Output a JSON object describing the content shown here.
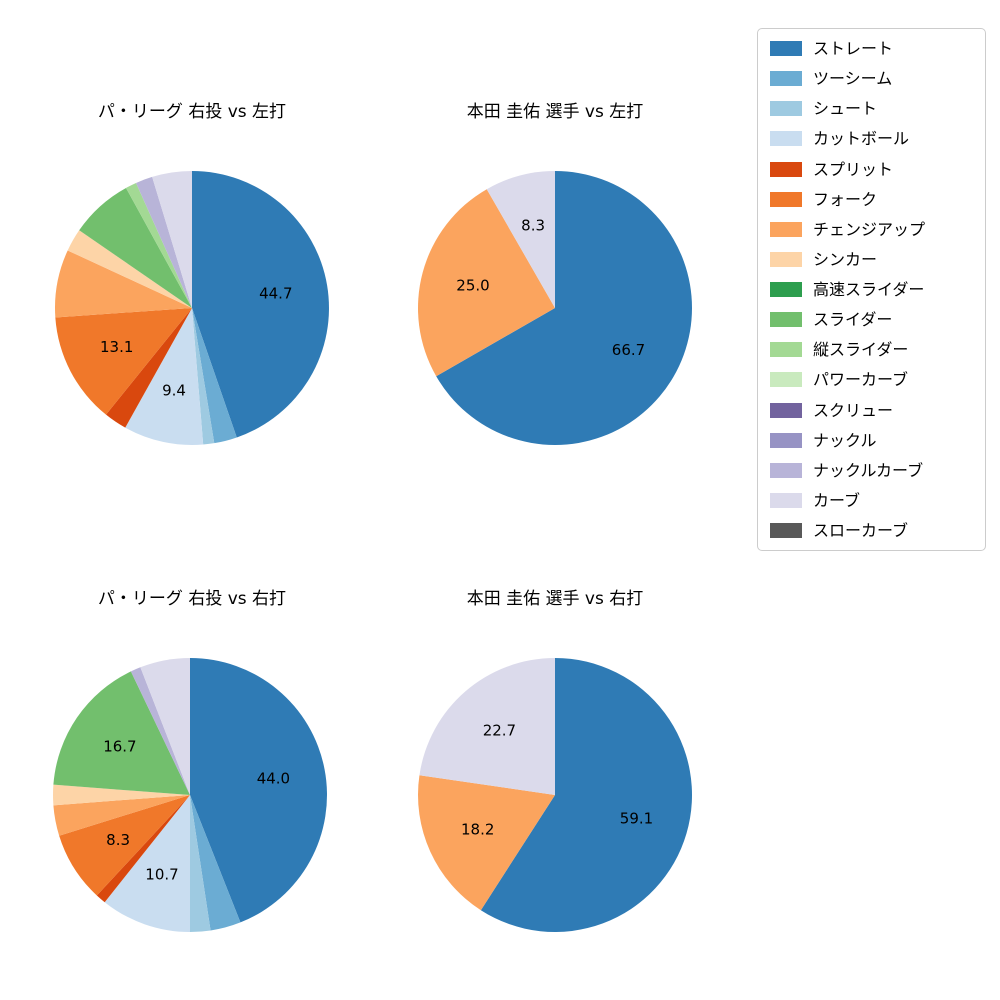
{
  "figure": {
    "background": "#ffffff"
  },
  "legend": {
    "items": [
      {
        "label": "ストレート",
        "color": "#2f7bb5"
      },
      {
        "label": "ツーシーム",
        "color": "#6bacd3"
      },
      {
        "label": "シュート",
        "color": "#9ecae1"
      },
      {
        "label": "カットボール",
        "color": "#c9ddf0"
      },
      {
        "label": "スプリット",
        "color": "#d9480e"
      },
      {
        "label": "フォーク",
        "color": "#f0782a"
      },
      {
        "label": "チェンジアップ",
        "color": "#fba45e"
      },
      {
        "label": "シンカー",
        "color": "#fdd4a7"
      },
      {
        "label": "高速スライダー",
        "color": "#2d9e4e"
      },
      {
        "label": "スライダー",
        "color": "#72bf6d"
      },
      {
        "label": "縦スライダー",
        "color": "#a3d994"
      },
      {
        "label": "パワーカーブ",
        "color": "#c9eabe"
      },
      {
        "label": "スクリュー",
        "color": "#72639e"
      },
      {
        "label": "ナックル",
        "color": "#9793c4"
      },
      {
        "label": "ナックルカーブ",
        "color": "#b8b4d8"
      },
      {
        "label": "カーブ",
        "color": "#dbdaeb"
      },
      {
        "label": "スローカーブ",
        "color": "#595959"
      }
    ]
  },
  "chart_data": [
    {
      "type": "pie",
      "title": "パ・リーグ 右投 vs 左打",
      "start_angle": "12-oclock",
      "direction": "clockwise",
      "slices": [
        {
          "name": "ストレート",
          "value": 44.7,
          "label": "44.7"
        },
        {
          "name": "ツーシーム",
          "value": 2.7,
          "label": null
        },
        {
          "name": "シュート",
          "value": 1.3,
          "label": null
        },
        {
          "name": "カットボール",
          "value": 9.4,
          "label": "9.4"
        },
        {
          "name": "スプリット",
          "value": 2.7,
          "label": null
        },
        {
          "name": "フォーク",
          "value": 13.1,
          "label": "13.1"
        },
        {
          "name": "チェンジアップ",
          "value": 8.0,
          "label": null
        },
        {
          "name": "シンカー",
          "value": 2.7,
          "label": null
        },
        {
          "name": "スライダー",
          "value": 7.4,
          "label": null
        },
        {
          "name": "縦スライダー",
          "value": 1.3,
          "label": null
        },
        {
          "name": "ナックルカーブ",
          "value": 2.0,
          "label": null
        },
        {
          "name": "カーブ",
          "value": 4.7,
          "label": null
        }
      ]
    },
    {
      "type": "pie",
      "title": "本田 圭佑 選手 vs 左打",
      "start_angle": "12-oclock",
      "direction": "clockwise",
      "slices": [
        {
          "name": "ストレート",
          "value": 66.7,
          "label": "66.7"
        },
        {
          "name": "チェンジアップ",
          "value": 25.0,
          "label": "25.0"
        },
        {
          "name": "カーブ",
          "value": 8.3,
          "label": "8.3"
        }
      ]
    },
    {
      "type": "pie",
      "title": "パ・リーグ 右投 vs 右打",
      "start_angle": "12-oclock",
      "direction": "clockwise",
      "slices": [
        {
          "name": "ストレート",
          "value": 44.0,
          "label": "44.0"
        },
        {
          "name": "ツーシーム",
          "value": 3.6,
          "label": null
        },
        {
          "name": "シュート",
          "value": 2.4,
          "label": null
        },
        {
          "name": "カットボール",
          "value": 10.7,
          "label": "10.7"
        },
        {
          "name": "スプリット",
          "value": 1.2,
          "label": null
        },
        {
          "name": "フォーク",
          "value": 8.3,
          "label": "8.3"
        },
        {
          "name": "チェンジアップ",
          "value": 3.6,
          "label": null
        },
        {
          "name": "シンカー",
          "value": 2.4,
          "label": null
        },
        {
          "name": "スライダー",
          "value": 16.7,
          "label": "16.7"
        },
        {
          "name": "ナックルカーブ",
          "value": 1.2,
          "label": null
        },
        {
          "name": "カーブ",
          "value": 5.9,
          "label": null
        }
      ]
    },
    {
      "type": "pie",
      "title": "本田 圭佑 選手 vs 右打",
      "start_angle": "12-oclock",
      "direction": "clockwise",
      "slices": [
        {
          "name": "ストレート",
          "value": 59.1,
          "label": "59.1"
        },
        {
          "name": "チェンジアップ",
          "value": 18.2,
          "label": "18.2"
        },
        {
          "name": "カーブ",
          "value": 22.7,
          "label": "22.7"
        }
      ]
    }
  ]
}
